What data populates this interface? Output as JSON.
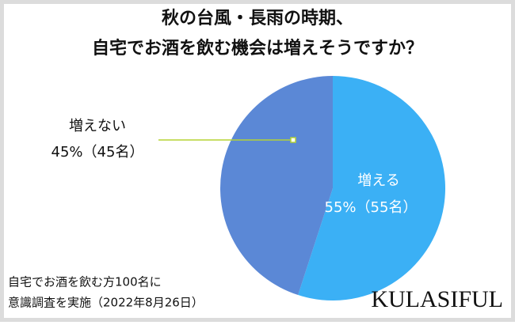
{
  "chart_data": {
    "type": "pie",
    "title": [
      "秋の台風・長雨の時期、",
      "自宅でお酒を飲む機会は増えそうですか？"
    ],
    "categories": [
      "増える",
      "増えない"
    ],
    "values": [
      55,
      45
    ],
    "value_labels": [
      "55%（55名）",
      "45%（45名）"
    ],
    "colors": [
      "#3bb0f5",
      "#5b88d6"
    ],
    "footnote": [
      "自宅でお酒を飲む方100名に",
      "意識調査を実施（2022年8月26日）"
    ],
    "brand": "KULASIFUL"
  }
}
